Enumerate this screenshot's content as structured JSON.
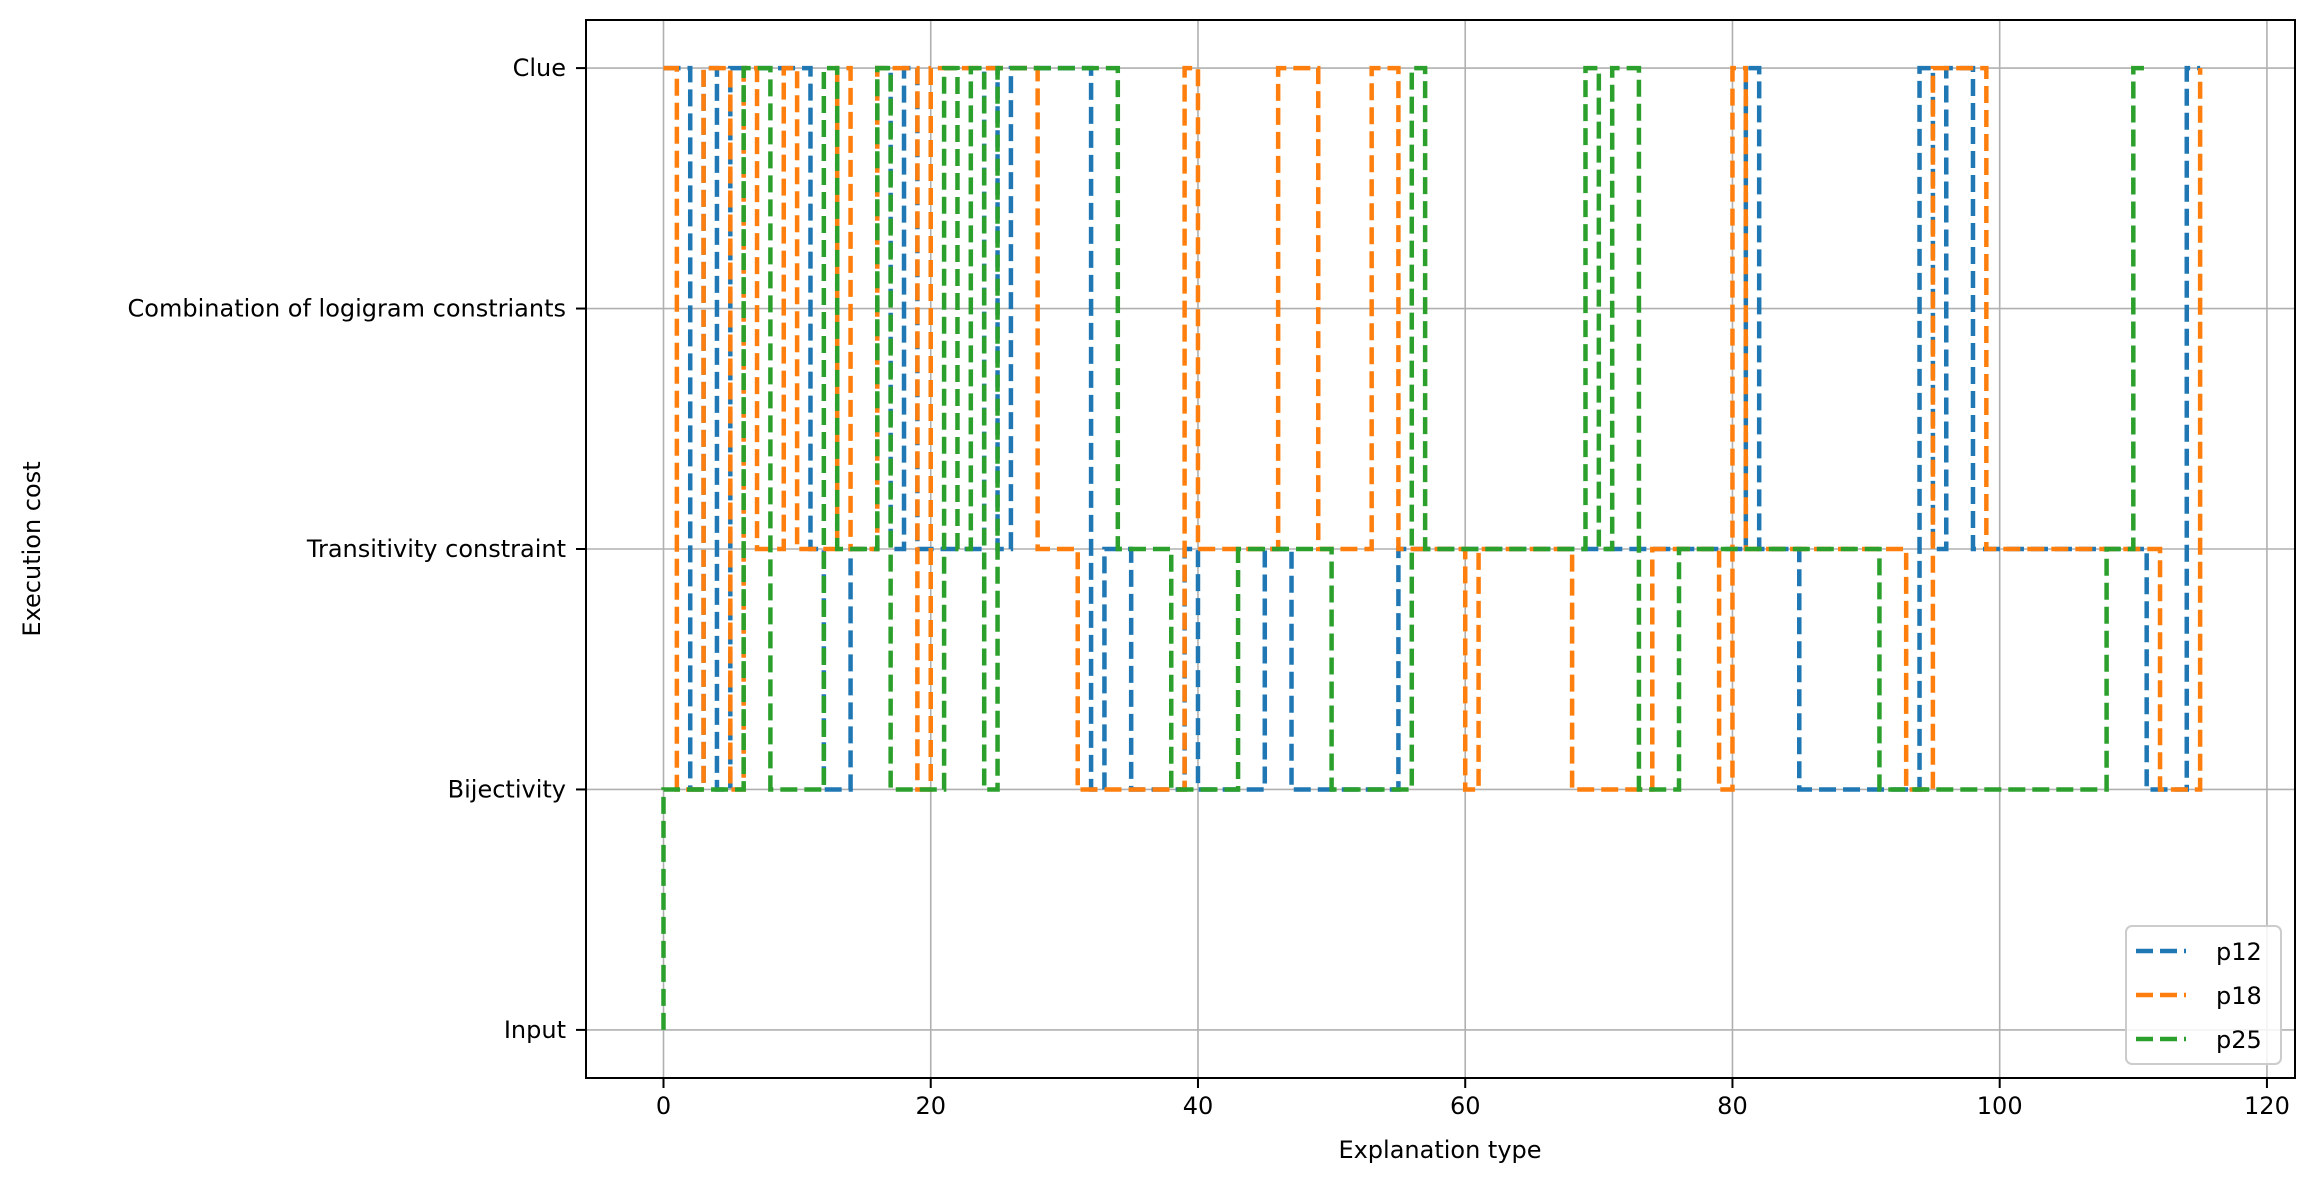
{
  "chart_data": {
    "type": "line",
    "step_style": "steps-post",
    "xlabel": "Explanation type",
    "ylabel": "Execution cost",
    "xlim": [
      -5.8,
      122.1
    ],
    "xticks": [
      0,
      20,
      40,
      60,
      80,
      100,
      120
    ],
    "xtick_labels": [
      "0",
      "20",
      "40",
      "60",
      "80",
      "100",
      "120"
    ],
    "ylim": [
      -0.2,
      4.2
    ],
    "y_categories": [
      "Input",
      "Bijectivity",
      "Transitivity constraint",
      "Combination of logigram constriants",
      "Clue"
    ],
    "grid": true,
    "legend_position": "lower right",
    "line_style": "dashed",
    "series": [
      {
        "name": "p12",
        "color": "#1f77b4",
        "x": [
          0,
          2,
          3,
          4,
          5,
          11,
          12,
          14,
          16,
          17,
          18,
          19,
          20,
          24,
          25,
          26,
          32,
          33,
          35,
          39,
          40,
          45,
          47,
          50,
          55,
          56,
          73,
          81,
          82,
          85,
          94,
          95,
          96,
          98,
          111,
          114,
          115
        ],
        "y": [
          4,
          1,
          4,
          1,
          4,
          2,
          1,
          2,
          4,
          2,
          4,
          2,
          2,
          4,
          2,
          4,
          1,
          2,
          1,
          2,
          1,
          2,
          1,
          1,
          2,
          2,
          2,
          4,
          2,
          1,
          4,
          2,
          4,
          2,
          1,
          4,
          4
        ]
      },
      {
        "name": "p18",
        "color": "#ff7f0e",
        "x": [
          0,
          1,
          3,
          5,
          6,
          7,
          9,
          10,
          13,
          14,
          16,
          19,
          20,
          28,
          31,
          39,
          40,
          46,
          48,
          49,
          53,
          55,
          60,
          61,
          68,
          74,
          79,
          80,
          81,
          82,
          93,
          95,
          96,
          99,
          112,
          115
        ],
        "y": [
          4,
          1,
          4,
          1,
          4,
          2,
          4,
          2,
          4,
          2,
          4,
          1,
          4,
          2,
          1,
          4,
          2,
          4,
          4,
          2,
          4,
          2,
          1,
          2,
          1,
          2,
          1,
          4,
          2,
          2,
          1,
          4,
          4,
          2,
          1,
          4
        ]
      },
      {
        "name": "p25",
        "color": "#2ca02c",
        "x": [
          0,
          0,
          6,
          8,
          12,
          13,
          16,
          17,
          21,
          22,
          23,
          24,
          25,
          34,
          38,
          43,
          50,
          56,
          57,
          58,
          66,
          69,
          70,
          71,
          73,
          76,
          80,
          91,
          108,
          110,
          111
        ],
        "y": [
          0,
          1,
          4,
          1,
          4,
          2,
          4,
          1,
          4,
          2,
          4,
          1,
          4,
          2,
          1,
          2,
          1,
          4,
          2,
          2,
          2,
          4,
          2,
          4,
          1,
          2,
          2,
          1,
          2,
          4,
          4
        ]
      }
    ]
  }
}
